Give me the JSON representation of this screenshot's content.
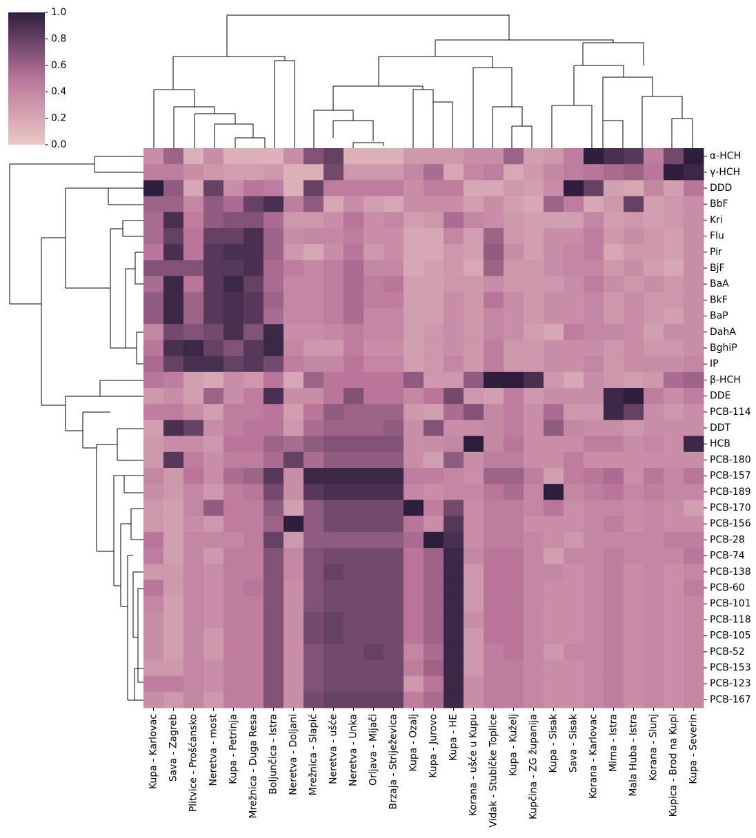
{
  "chart_data": {
    "type": "heatmap",
    "title": "",
    "xlabel": "",
    "ylabel": "",
    "colorbar": {
      "range": [
        0,
        1
      ],
      "ticks": [
        "0.0",
        "0.2",
        "0.4",
        "0.6",
        "0.8",
        "1.0"
      ],
      "color_low": "#ebc9c6",
      "color_mid": "#b9759a",
      "color_high": "#2d1e3e"
    },
    "rows": [
      "α-HCH",
      "γ-HCH",
      "DDD",
      "BbF",
      "Kri",
      "Flu",
      "Pir",
      "BjF",
      "BaA",
      "BkF",
      "BaP",
      "DahA",
      "BghiP",
      "IP",
      "β-HCH",
      "DDE",
      "PCB-114",
      "DDT",
      "HCB",
      "PCB-180",
      "PCB-157",
      "PCB-189",
      "PCB-170",
      "PCB-156",
      "PCB-28",
      "PCB-74",
      "PCB-138",
      "PCB-60",
      "PCB-101",
      "PCB-118",
      "PCB-105",
      "PCB-52",
      "PCB-153",
      "PCB-123",
      "PCB-167"
    ],
    "columns": [
      "Kupa - Karlovac",
      "Sava - Zagreb",
      "Plitvice - Prošćansko",
      "Neretva - most",
      "Kupa - Petrinja",
      "Mrežnica - Duga Resa",
      "Boljunčica - Istra",
      "Neretva - Doljani",
      "Mrežnica - Slapić",
      "Neretva - ušće",
      "Neretva - Unka",
      "Orljava - Mijači",
      "Brzaja - Striježevica",
      "Kupa - Ozalj",
      "Kupa - Jurovo",
      "Kupa - HE",
      "Korana - ušće u Kupu",
      "Vidak - Stubičke Toplice",
      "Kupa - Kuželj",
      "Kupčina - ZG županija",
      "Kupa - Sisak",
      "Sava - Sisak",
      "Korana - Karlovac",
      "Mirna - Istra",
      "Mala Huba - Istra",
      "Korana - Slunj",
      "Kupica - Brod na Kupi",
      "Kupa - Severin"
    ],
    "values": [
      [
        0.35,
        0.6,
        0.15,
        0.35,
        0.15,
        0.15,
        0.15,
        0.35,
        0.7,
        0.8,
        0.15,
        0.15,
        0.15,
        0.3,
        0.3,
        0.3,
        0.35,
        0.35,
        0.6,
        0.25,
        0.3,
        0.45,
        1.0,
        0.9,
        0.85,
        0.45,
        0.75,
        1.0
      ],
      [
        0.45,
        0.45,
        0.35,
        0.3,
        0.25,
        0.25,
        0.3,
        0.15,
        0.15,
        0.75,
        0.3,
        0.3,
        0.3,
        0.4,
        0.55,
        0.2,
        0.4,
        0.45,
        0.2,
        0.3,
        0.4,
        0.45,
        0.5,
        0.55,
        0.6,
        0.5,
        1.0,
        0.95
      ],
      [
        1.0,
        0.65,
        0.2,
        0.8,
        0.35,
        0.5,
        0.45,
        0.15,
        0.8,
        0.45,
        0.45,
        0.45,
        0.45,
        0.35,
        0.45,
        0.45,
        0.2,
        0.2,
        0.3,
        0.25,
        0.35,
        1.0,
        0.8,
        0.25,
        0.2,
        0.4,
        0.25,
        0.5
      ],
      [
        0.6,
        0.6,
        0.4,
        0.65,
        0.55,
        0.8,
        0.9,
        0.45,
        0.65,
        0.2,
        0.35,
        0.25,
        0.2,
        0.35,
        0.35,
        0.35,
        0.25,
        0.35,
        0.25,
        0.2,
        0.6,
        0.45,
        0.2,
        0.3,
        0.8,
        0.25,
        0.3,
        0.35
      ],
      [
        0.55,
        0.9,
        0.45,
        0.65,
        0.7,
        0.7,
        0.55,
        0.3,
        0.3,
        0.35,
        0.5,
        0.35,
        0.4,
        0.25,
        0.3,
        0.55,
        0.4,
        0.35,
        0.3,
        0.25,
        0.25,
        0.25,
        0.4,
        0.25,
        0.3,
        0.25,
        0.3,
        0.35
      ],
      [
        0.55,
        0.8,
        0.5,
        0.8,
        0.8,
        0.9,
        0.6,
        0.35,
        0.4,
        0.4,
        0.45,
        0.35,
        0.35,
        0.2,
        0.2,
        0.4,
        0.25,
        0.6,
        0.3,
        0.25,
        0.35,
        0.35,
        0.45,
        0.3,
        0.35,
        0.3,
        0.25,
        0.35
      ],
      [
        0.5,
        0.9,
        0.5,
        0.85,
        0.9,
        0.9,
        0.6,
        0.3,
        0.2,
        0.35,
        0.5,
        0.3,
        0.35,
        0.2,
        0.2,
        0.3,
        0.25,
        0.65,
        0.35,
        0.25,
        0.35,
        0.4,
        0.45,
        0.2,
        0.3,
        0.3,
        0.25,
        0.35
      ],
      [
        0.7,
        0.7,
        0.7,
        0.85,
        0.85,
        0.9,
        0.55,
        0.45,
        0.4,
        0.45,
        0.55,
        0.4,
        0.4,
        0.2,
        0.25,
        0.3,
        0.2,
        0.6,
        0.3,
        0.3,
        0.35,
        0.4,
        0.4,
        0.3,
        0.35,
        0.25,
        0.2,
        0.35
      ],
      [
        0.55,
        0.95,
        0.5,
        0.85,
        0.95,
        0.8,
        0.55,
        0.4,
        0.4,
        0.45,
        0.55,
        0.45,
        0.5,
        0.25,
        0.25,
        0.3,
        0.3,
        0.35,
        0.3,
        0.3,
        0.3,
        0.35,
        0.45,
        0.35,
        0.3,
        0.35,
        0.3,
        0.35
      ],
      [
        0.65,
        0.95,
        0.6,
        0.85,
        0.9,
        0.85,
        0.6,
        0.4,
        0.4,
        0.45,
        0.55,
        0.45,
        0.45,
        0.25,
        0.25,
        0.35,
        0.3,
        0.5,
        0.35,
        0.3,
        0.35,
        0.35,
        0.4,
        0.3,
        0.35,
        0.3,
        0.3,
        0.35
      ],
      [
        0.65,
        0.95,
        0.6,
        0.85,
        0.9,
        0.85,
        0.55,
        0.4,
        0.4,
        0.45,
        0.55,
        0.4,
        0.4,
        0.25,
        0.25,
        0.35,
        0.3,
        0.4,
        0.35,
        0.3,
        0.35,
        0.35,
        0.4,
        0.3,
        0.35,
        0.3,
        0.25,
        0.35
      ],
      [
        0.4,
        0.75,
        0.7,
        0.75,
        0.9,
        0.7,
        0.95,
        0.35,
        0.35,
        0.4,
        0.45,
        0.4,
        0.4,
        0.25,
        0.3,
        0.35,
        0.3,
        0.4,
        0.35,
        0.25,
        0.2,
        0.45,
        0.4,
        0.4,
        0.35,
        0.25,
        0.35,
        0.35
      ],
      [
        0.5,
        0.9,
        0.95,
        0.8,
        0.7,
        0.85,
        0.95,
        0.4,
        0.3,
        0.3,
        0.45,
        0.35,
        0.35,
        0.25,
        0.3,
        0.35,
        0.3,
        0.45,
        0.3,
        0.3,
        0.35,
        0.35,
        0.35,
        0.3,
        0.35,
        0.3,
        0.3,
        0.35
      ],
      [
        0.55,
        0.8,
        0.9,
        0.9,
        0.8,
        0.85,
        0.75,
        0.45,
        0.4,
        0.4,
        0.5,
        0.4,
        0.4,
        0.25,
        0.3,
        0.4,
        0.3,
        0.45,
        0.3,
        0.3,
        0.35,
        0.35,
        0.4,
        0.3,
        0.35,
        0.35,
        0.35,
        0.4
      ],
      [
        0.5,
        0.45,
        0.25,
        0.2,
        0.35,
        0.3,
        0.5,
        0.2,
        0.6,
        0.5,
        0.5,
        0.5,
        0.5,
        0.65,
        0.3,
        0.3,
        0.65,
        1.0,
        1.0,
        0.9,
        0.3,
        0.2,
        0.35,
        0.3,
        0.25,
        0.3,
        0.55,
        0.6
      ],
      [
        0.3,
        0.35,
        0.25,
        0.6,
        0.35,
        0.45,
        0.9,
        0.35,
        0.35,
        0.5,
        0.7,
        0.5,
        0.5,
        0.4,
        0.5,
        0.75,
        0.3,
        0.25,
        0.45,
        0.3,
        0.35,
        0.35,
        0.35,
        0.95,
        1.0,
        0.45,
        0.35,
        0.45
      ],
      [
        0.45,
        0.45,
        0.35,
        0.25,
        0.45,
        0.45,
        0.5,
        0.25,
        0.5,
        0.65,
        0.6,
        0.6,
        0.6,
        0.3,
        0.25,
        0.55,
        0.7,
        0.4,
        0.45,
        0.35,
        0.55,
        0.3,
        0.3,
        0.95,
        0.8,
        0.35,
        0.3,
        0.35
      ],
      [
        0.25,
        0.9,
        0.8,
        0.35,
        0.45,
        0.5,
        0.5,
        0.3,
        0.55,
        0.6,
        0.6,
        0.6,
        0.65,
        0.35,
        0.7,
        0.35,
        0.35,
        0.4,
        0.45,
        0.35,
        0.65,
        0.4,
        0.35,
        0.35,
        0.3,
        0.35,
        0.35,
        0.35
      ],
      [
        0.3,
        0.35,
        0.35,
        0.3,
        0.5,
        0.5,
        0.6,
        0.55,
        0.65,
        0.7,
        0.7,
        0.7,
        0.7,
        0.35,
        0.35,
        0.4,
        1.0,
        0.4,
        0.5,
        0.35,
        0.35,
        0.35,
        0.45,
        0.45,
        0.35,
        0.4,
        0.35,
        0.95
      ],
      [
        0.3,
        0.85,
        0.45,
        0.35,
        0.45,
        0.45,
        0.55,
        0.8,
        0.55,
        0.65,
        0.65,
        0.65,
        0.65,
        0.35,
        0.25,
        0.65,
        0.35,
        0.45,
        0.45,
        0.35,
        0.35,
        0.45,
        0.35,
        0.35,
        0.35,
        0.35,
        0.35,
        0.35
      ],
      [
        0.4,
        0.3,
        0.5,
        0.35,
        0.55,
        0.6,
        0.85,
        0.35,
        0.95,
        0.95,
        0.95,
        0.95,
        0.95,
        0.45,
        0.45,
        0.4,
        0.35,
        0.6,
        0.6,
        0.45,
        0.25,
        0.45,
        0.5,
        0.55,
        0.35,
        0.5,
        0.4,
        0.5
      ],
      [
        0.35,
        0.3,
        0.4,
        0.3,
        0.45,
        0.5,
        0.75,
        0.35,
        0.85,
        0.9,
        0.9,
        0.9,
        0.9,
        0.4,
        0.35,
        0.4,
        0.4,
        0.5,
        0.55,
        0.4,
        1.0,
        0.4,
        0.45,
        0.5,
        0.4,
        0.45,
        0.4,
        0.4
      ],
      [
        0.3,
        0.25,
        0.4,
        0.65,
        0.45,
        0.45,
        0.65,
        0.25,
        0.65,
        0.75,
        0.75,
        0.75,
        0.75,
        1.0,
        0.45,
        0.75,
        0.35,
        0.45,
        0.45,
        0.4,
        0.5,
        0.35,
        0.4,
        0.4,
        0.35,
        0.4,
        0.35,
        0.25
      ],
      [
        0.3,
        0.25,
        0.35,
        0.3,
        0.45,
        0.45,
        0.6,
        1.0,
        0.65,
        0.75,
        0.75,
        0.75,
        0.75,
        0.5,
        0.35,
        0.85,
        0.35,
        0.45,
        0.45,
        0.35,
        0.35,
        0.35,
        0.4,
        0.45,
        0.35,
        0.4,
        0.35,
        0.35
      ],
      [
        0.5,
        0.25,
        0.4,
        0.4,
        0.4,
        0.45,
        0.8,
        0.3,
        0.65,
        0.65,
        0.65,
        0.65,
        0.65,
        0.55,
        1.0,
        0.9,
        0.35,
        0.45,
        0.45,
        0.4,
        0.35,
        0.3,
        0.4,
        0.4,
        0.4,
        0.4,
        0.45,
        0.45
      ],
      [
        0.45,
        0.25,
        0.4,
        0.3,
        0.45,
        0.45,
        0.7,
        0.4,
        0.7,
        0.75,
        0.75,
        0.75,
        0.75,
        0.5,
        0.6,
        0.95,
        0.4,
        0.5,
        0.5,
        0.4,
        0.25,
        0.4,
        0.4,
        0.45,
        0.4,
        0.4,
        0.4,
        0.5
      ],
      [
        0.3,
        0.3,
        0.4,
        0.35,
        0.45,
        0.45,
        0.7,
        0.4,
        0.7,
        0.8,
        0.75,
        0.75,
        0.75,
        0.5,
        0.6,
        0.95,
        0.3,
        0.5,
        0.5,
        0.4,
        0.4,
        0.35,
        0.4,
        0.45,
        0.35,
        0.4,
        0.35,
        0.4
      ],
      [
        0.5,
        0.3,
        0.4,
        0.35,
        0.45,
        0.5,
        0.7,
        0.35,
        0.7,
        0.75,
        0.75,
        0.75,
        0.75,
        0.5,
        0.6,
        0.95,
        0.3,
        0.5,
        0.5,
        0.4,
        0.35,
        0.35,
        0.4,
        0.45,
        0.35,
        0.4,
        0.35,
        0.45
      ],
      [
        0.4,
        0.25,
        0.4,
        0.35,
        0.45,
        0.45,
        0.7,
        0.35,
        0.7,
        0.75,
        0.75,
        0.75,
        0.75,
        0.5,
        0.6,
        0.95,
        0.3,
        0.5,
        0.5,
        0.4,
        0.35,
        0.35,
        0.4,
        0.45,
        0.35,
        0.4,
        0.35,
        0.4
      ],
      [
        0.35,
        0.25,
        0.4,
        0.35,
        0.45,
        0.45,
        0.7,
        0.35,
        0.75,
        0.8,
        0.75,
        0.75,
        0.75,
        0.5,
        0.6,
        0.95,
        0.35,
        0.5,
        0.5,
        0.4,
        0.35,
        0.35,
        0.4,
        0.45,
        0.35,
        0.4,
        0.35,
        0.4
      ],
      [
        0.35,
        0.25,
        0.4,
        0.3,
        0.45,
        0.45,
        0.7,
        0.35,
        0.75,
        0.8,
        0.75,
        0.75,
        0.75,
        0.5,
        0.6,
        0.95,
        0.3,
        0.5,
        0.5,
        0.4,
        0.35,
        0.35,
        0.4,
        0.45,
        0.35,
        0.4,
        0.35,
        0.4
      ],
      [
        0.35,
        0.25,
        0.4,
        0.3,
        0.45,
        0.45,
        0.7,
        0.35,
        0.7,
        0.75,
        0.75,
        0.8,
        0.75,
        0.4,
        0.55,
        0.95,
        0.3,
        0.45,
        0.5,
        0.4,
        0.3,
        0.4,
        0.4,
        0.45,
        0.35,
        0.4,
        0.35,
        0.4
      ],
      [
        0.3,
        0.3,
        0.4,
        0.35,
        0.45,
        0.45,
        0.7,
        0.35,
        0.7,
        0.75,
        0.75,
        0.75,
        0.75,
        0.45,
        0.6,
        0.95,
        0.3,
        0.45,
        0.45,
        0.4,
        0.35,
        0.35,
        0.4,
        0.45,
        0.35,
        0.4,
        0.35,
        0.4
      ],
      [
        0.45,
        0.45,
        0.4,
        0.35,
        0.45,
        0.45,
        0.7,
        0.35,
        0.7,
        0.75,
        0.75,
        0.75,
        0.75,
        0.3,
        0.5,
        0.95,
        0.35,
        0.45,
        0.45,
        0.4,
        0.35,
        0.35,
        0.4,
        0.45,
        0.35,
        0.4,
        0.35,
        0.4
      ],
      [
        0.35,
        0.3,
        0.4,
        0.3,
        0.45,
        0.45,
        0.7,
        0.35,
        0.75,
        0.8,
        0.8,
        0.8,
        0.8,
        0.45,
        0.55,
        0.95,
        0.35,
        0.45,
        0.45,
        0.4,
        0.35,
        0.35,
        0.4,
        0.45,
        0.35,
        0.4,
        0.35,
        0.4
      ]
    ],
    "grid": false,
    "legend": "top-left colorbar"
  }
}
